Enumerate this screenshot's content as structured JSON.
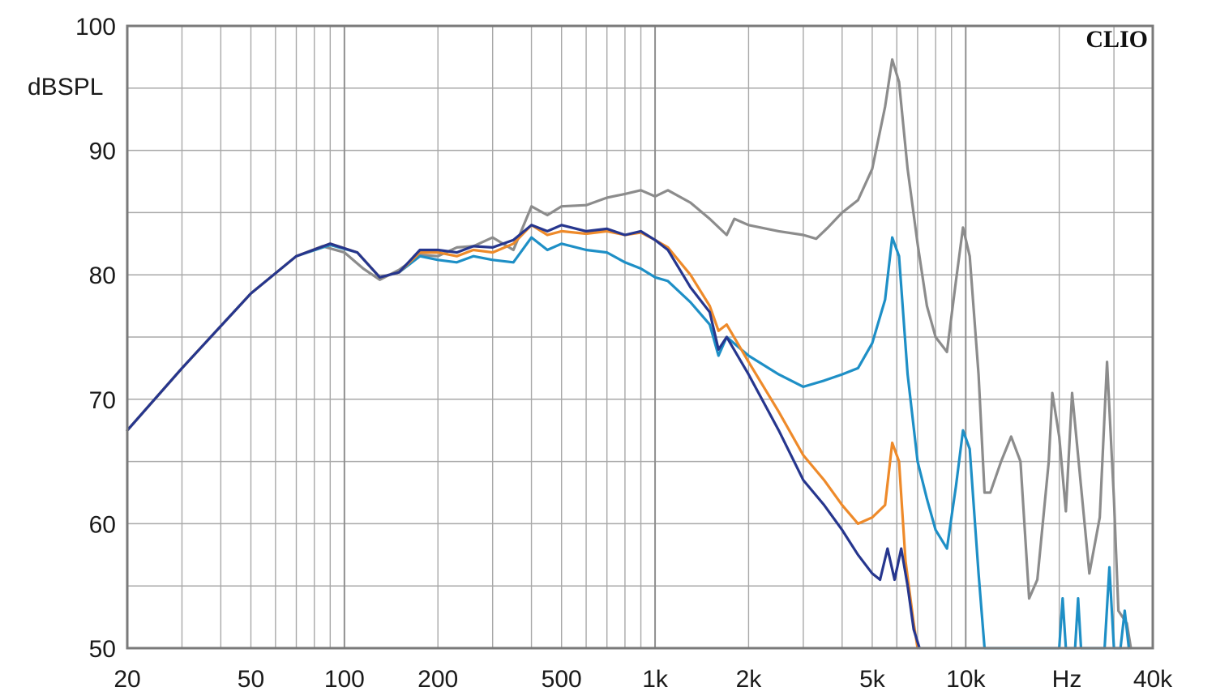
{
  "chart_data": {
    "type": "line",
    "title": "",
    "brand": "CLIO",
    "ylabel": "dBSPL",
    "xunit": "Hz",
    "xscale": "log",
    "xlim": [
      20,
      40000
    ],
    "ylim": [
      50,
      100
    ],
    "grid": true,
    "yticks": [
      {
        "value": 50,
        "label": "50"
      },
      {
        "value": 60,
        "label": "60"
      },
      {
        "value": 70,
        "label": "70"
      },
      {
        "value": 80,
        "label": "80"
      },
      {
        "value": 90,
        "label": "90"
      },
      {
        "value": 100,
        "label": "100"
      }
    ],
    "xticks": [
      {
        "value": 20,
        "label": "20"
      },
      {
        "value": 50,
        "label": "50"
      },
      {
        "value": 100,
        "label": "100"
      },
      {
        "value": 200,
        "label": "200"
      },
      {
        "value": 500,
        "label": "500"
      },
      {
        "value": 1000,
        "label": "1k"
      },
      {
        "value": 2000,
        "label": "2k"
      },
      {
        "value": 5000,
        "label": "5k"
      },
      {
        "value": 10000,
        "label": "10k"
      },
      {
        "value": 40000,
        "label": "40k"
      }
    ],
    "colors": {
      "grid": "#a8a8a8",
      "frame": "#7a7a7a",
      "gray": "#8c8c8c",
      "light_blue": "#1e8fc6",
      "orange": "#ee8a2a",
      "dark_blue": "#26368e"
    },
    "series": [
      {
        "color": "#8c8c8c",
        "points": [
          [
            20,
            67.5
          ],
          [
            30,
            72.5
          ],
          [
            50,
            78.5
          ],
          [
            70,
            81.5
          ],
          [
            85,
            82.3
          ],
          [
            100,
            81.8
          ],
          [
            115,
            80.5
          ],
          [
            130,
            79.6
          ],
          [
            150,
            80.4
          ],
          [
            175,
            81.6
          ],
          [
            200,
            81.5
          ],
          [
            230,
            82.2
          ],
          [
            260,
            82.3
          ],
          [
            300,
            83.0
          ],
          [
            350,
            82.0
          ],
          [
            400,
            85.5
          ],
          [
            450,
            84.8
          ],
          [
            500,
            85.5
          ],
          [
            600,
            85.6
          ],
          [
            700,
            86.2
          ],
          [
            800,
            86.5
          ],
          [
            900,
            86.8
          ],
          [
            1000,
            86.3
          ],
          [
            1100,
            86.8
          ],
          [
            1300,
            85.8
          ],
          [
            1500,
            84.5
          ],
          [
            1700,
            83.2
          ],
          [
            1800,
            84.5
          ],
          [
            2000,
            84.0
          ],
          [
            2500,
            83.5
          ],
          [
            3000,
            83.2
          ],
          [
            3300,
            82.9
          ],
          [
            3600,
            83.8
          ],
          [
            4000,
            85.0
          ],
          [
            4500,
            86.0
          ],
          [
            5000,
            88.5
          ],
          [
            5500,
            93.5
          ],
          [
            5800,
            97.3
          ],
          [
            6100,
            95.5
          ],
          [
            6500,
            88.5
          ],
          [
            7000,
            82.5
          ],
          [
            7500,
            77.5
          ],
          [
            8000,
            75.0
          ],
          [
            8700,
            73.8
          ],
          [
            9300,
            79.5
          ],
          [
            9800,
            83.8
          ],
          [
            10300,
            81.5
          ],
          [
            11000,
            72.0
          ],
          [
            11500,
            62.5
          ],
          [
            12000,
            62.5
          ],
          [
            13000,
            65.0
          ],
          [
            14000,
            67.0
          ],
          [
            15000,
            65.0
          ],
          [
            16000,
            54.0
          ],
          [
            17000,
            55.5
          ],
          [
            18500,
            65.0
          ],
          [
            19000,
            70.5
          ],
          [
            20000,
            67.0
          ],
          [
            21000,
            61.0
          ],
          [
            22000,
            70.5
          ],
          [
            23500,
            63.0
          ],
          [
            25000,
            56.0
          ],
          [
            27000,
            60.5
          ],
          [
            28500,
            73.0
          ],
          [
            30000,
            62.0
          ],
          [
            31000,
            53.0
          ],
          [
            33000,
            52.0
          ],
          [
            34000,
            50.0
          ]
        ]
      },
      {
        "color": "#1e8fc6",
        "points": [
          [
            20,
            67.5
          ],
          [
            30,
            72.5
          ],
          [
            50,
            78.5
          ],
          [
            70,
            81.5
          ],
          [
            90,
            82.4
          ],
          [
            110,
            81.8
          ],
          [
            130,
            79.8
          ],
          [
            150,
            80.2
          ],
          [
            175,
            81.5
          ],
          [
            200,
            81.2
          ],
          [
            230,
            81.0
          ],
          [
            260,
            81.5
          ],
          [
            300,
            81.2
          ],
          [
            350,
            81.0
          ],
          [
            400,
            83.0
          ],
          [
            450,
            82.0
          ],
          [
            500,
            82.5
          ],
          [
            600,
            82.0
          ],
          [
            700,
            81.8
          ],
          [
            800,
            81.0
          ],
          [
            900,
            80.5
          ],
          [
            1000,
            79.8
          ],
          [
            1100,
            79.5
          ],
          [
            1300,
            77.8
          ],
          [
            1500,
            76.0
          ],
          [
            1600,
            73.5
          ],
          [
            1700,
            75.0
          ],
          [
            2000,
            73.5
          ],
          [
            2500,
            72.0
          ],
          [
            3000,
            71.0
          ],
          [
            3500,
            71.5
          ],
          [
            4000,
            72.0
          ],
          [
            4500,
            72.5
          ],
          [
            5000,
            74.5
          ],
          [
            5500,
            78.0
          ],
          [
            5800,
            83.0
          ],
          [
            6100,
            81.5
          ],
          [
            6500,
            72.0
          ],
          [
            7000,
            65.0
          ],
          [
            7500,
            62.0
          ],
          [
            8000,
            59.5
          ],
          [
            8700,
            58.0
          ],
          [
            9300,
            63.0
          ],
          [
            9800,
            67.5
          ],
          [
            10300,
            66.0
          ],
          [
            11000,
            56.0
          ],
          [
            11500,
            50.0
          ],
          [
            20000,
            50.0
          ],
          [
            20500,
            54.0
          ],
          [
            21000,
            50.0
          ],
          [
            22500,
            50.0
          ],
          [
            23000,
            54.0
          ],
          [
            23500,
            50.0
          ],
          [
            28000,
            50.0
          ],
          [
            29000,
            56.5
          ],
          [
            30000,
            50.0
          ],
          [
            31500,
            50.0
          ],
          [
            32500,
            53.0
          ],
          [
            33500,
            50.0
          ]
        ]
      },
      {
        "color": "#ee8a2a",
        "points": [
          [
            20,
            67.5
          ],
          [
            30,
            72.5
          ],
          [
            50,
            78.5
          ],
          [
            70,
            81.5
          ],
          [
            90,
            82.5
          ],
          [
            110,
            81.8
          ],
          [
            130,
            79.8
          ],
          [
            150,
            80.2
          ],
          [
            175,
            81.8
          ],
          [
            200,
            81.8
          ],
          [
            230,
            81.5
          ],
          [
            260,
            82.0
          ],
          [
            300,
            81.8
          ],
          [
            350,
            82.5
          ],
          [
            400,
            84.0
          ],
          [
            450,
            83.2
          ],
          [
            500,
            83.5
          ],
          [
            600,
            83.3
          ],
          [
            700,
            83.5
          ],
          [
            800,
            83.2
          ],
          [
            900,
            83.4
          ],
          [
            1000,
            82.8
          ],
          [
            1100,
            82.2
          ],
          [
            1300,
            80.0
          ],
          [
            1500,
            77.5
          ],
          [
            1600,
            75.5
          ],
          [
            1700,
            76.0
          ],
          [
            2000,
            73.0
          ],
          [
            2500,
            69.0
          ],
          [
            3000,
            65.5
          ],
          [
            3500,
            63.5
          ],
          [
            4000,
            61.5
          ],
          [
            4500,
            60.0
          ],
          [
            5000,
            60.5
          ],
          [
            5500,
            61.5
          ],
          [
            5800,
            66.5
          ],
          [
            6100,
            65.0
          ],
          [
            6400,
            57.0
          ],
          [
            6800,
            52.0
          ],
          [
            7000,
            50.0
          ]
        ]
      },
      {
        "color": "#26368e",
        "points": [
          [
            20,
            67.5
          ],
          [
            30,
            72.5
          ],
          [
            50,
            78.5
          ],
          [
            70,
            81.5
          ],
          [
            90,
            82.5
          ],
          [
            110,
            81.8
          ],
          [
            130,
            79.8
          ],
          [
            150,
            80.2
          ],
          [
            175,
            82.0
          ],
          [
            200,
            82.0
          ],
          [
            230,
            81.8
          ],
          [
            260,
            82.3
          ],
          [
            300,
            82.2
          ],
          [
            350,
            82.8
          ],
          [
            400,
            84.0
          ],
          [
            450,
            83.5
          ],
          [
            500,
            84.0
          ],
          [
            600,
            83.5
          ],
          [
            700,
            83.7
          ],
          [
            800,
            83.2
          ],
          [
            900,
            83.5
          ],
          [
            1000,
            82.8
          ],
          [
            1100,
            82.0
          ],
          [
            1300,
            79.0
          ],
          [
            1500,
            77.0
          ],
          [
            1600,
            74.0
          ],
          [
            1700,
            75.0
          ],
          [
            2000,
            72.0
          ],
          [
            2500,
            67.5
          ],
          [
            3000,
            63.5
          ],
          [
            3500,
            61.5
          ],
          [
            4000,
            59.5
          ],
          [
            4500,
            57.5
          ],
          [
            5000,
            56.0
          ],
          [
            5300,
            55.5
          ],
          [
            5600,
            58.0
          ],
          [
            5900,
            55.5
          ],
          [
            6200,
            58.0
          ],
          [
            6500,
            55.0
          ],
          [
            6800,
            51.5
          ],
          [
            7100,
            50.0
          ]
        ]
      }
    ]
  }
}
